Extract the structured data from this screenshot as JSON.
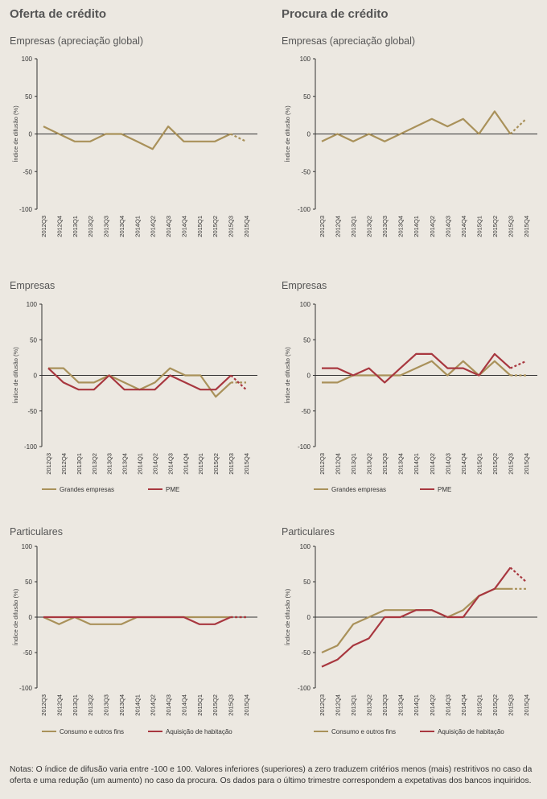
{
  "headers": {
    "left": "Oferta de crédito",
    "right": "Procura de crédito"
  },
  "notes": "Notas: O índice de difusão varia entre -100 e 100. Valores inferiores (superiores) a zero traduzem critérios menos (mais) restritivos no caso da oferta e uma redução (um aumento) no caso da procura. Os dados para o último trimestre correspondem a expetativas dos bancos inquiridos.",
  "colors": {
    "gold": "#a9915a",
    "red": "#a8373f",
    "axis": "#333333"
  },
  "chart_data": [
    {
      "type": "line",
      "panel": "oferta-empresas-global",
      "subtitle": "Empresas (apreciação global)",
      "ylabel": "Índice de difusão (%)",
      "ylim": [
        -100,
        100
      ],
      "yticks": [
        100,
        50,
        0,
        -50,
        -100
      ],
      "categories": [
        "2012Q3",
        "2012Q4",
        "2013Q1",
        "2013Q2",
        "2013Q3",
        "2013Q4",
        "2014Q1",
        "2014Q2",
        "2014Q3",
        "2014Q4",
        "2015Q1",
        "2015Q2",
        "2015Q3",
        "2015Q4"
      ],
      "forecast_last": true,
      "series": [
        {
          "name": "Empresas",
          "color": "gold",
          "values": [
            10,
            0,
            -10,
            -10,
            0,
            0,
            -10,
            -20,
            10,
            -10,
            -10,
            -10,
            0,
            -10
          ]
        }
      ]
    },
    {
      "type": "line",
      "panel": "procura-empresas-global",
      "subtitle": "Empresas (apreciação global)",
      "ylabel": "Índice de difusão (%)",
      "ylim": [
        -100,
        100
      ],
      "yticks": [
        100,
        50,
        0,
        -50,
        -100
      ],
      "categories": [
        "2012Q3",
        "2012Q4",
        "2013Q1",
        "2013Q2",
        "2013Q3",
        "2013Q4",
        "2014Q1",
        "2014Q2",
        "2014Q3",
        "2014Q4",
        "2015Q1",
        "2015Q2",
        "2015Q3",
        "2015Q4"
      ],
      "forecast_last": true,
      "series": [
        {
          "name": "Empresas",
          "color": "gold",
          "values": [
            -10,
            0,
            -10,
            0,
            -10,
            0,
            10,
            20,
            10,
            20,
            0,
            30,
            0,
            20
          ]
        }
      ]
    },
    {
      "type": "line",
      "panel": "oferta-empresas",
      "subtitle": "Empresas",
      "ylabel": "Índice de difusão (%)",
      "ylim": [
        -100,
        100
      ],
      "yticks": [
        100,
        50,
        0,
        -50,
        -100
      ],
      "categories": [
        "2012Q3",
        "2012Q4",
        "2013Q1",
        "2013Q2",
        "2013Q3",
        "2013Q4",
        "2014Q1",
        "2014Q2",
        "2014Q3",
        "2014Q4",
        "2015Q1",
        "2015Q2",
        "2015Q3",
        "2015Q4"
      ],
      "forecast_last": true,
      "series": [
        {
          "name": "Grandes empresas",
          "color": "gold",
          "values": [
            10,
            10,
            -10,
            -10,
            0,
            -10,
            -20,
            -10,
            10,
            0,
            0,
            -30,
            -10,
            -10
          ]
        },
        {
          "name": "PME",
          "color": "red",
          "values": [
            10,
            -10,
            -20,
            -20,
            0,
            -20,
            -20,
            -20,
            0,
            -10,
            -20,
            -20,
            0,
            -20
          ]
        }
      ]
    },
    {
      "type": "line",
      "panel": "procura-empresas",
      "subtitle": "Empresas",
      "ylabel": "Índice de difusão (%)",
      "ylim": [
        -100,
        100
      ],
      "yticks": [
        100,
        50,
        0,
        -50,
        -100
      ],
      "categories": [
        "2012Q3",
        "2012Q4",
        "2013Q1",
        "2013Q2",
        "2013Q3",
        "2013Q4",
        "2014Q1",
        "2014Q2",
        "2014Q3",
        "2014Q4",
        "2015Q1",
        "2015Q2",
        "2015Q3",
        "2015Q4"
      ],
      "forecast_last": true,
      "series": [
        {
          "name": "Grandes empresas",
          "color": "gold",
          "values": [
            -10,
            -10,
            0,
            0,
            0,
            0,
            10,
            20,
            0,
            20,
            0,
            20,
            0,
            0
          ]
        },
        {
          "name": "PME",
          "color": "red",
          "values": [
            10,
            10,
            0,
            10,
            -10,
            10,
            30,
            30,
            10,
            10,
            0,
            30,
            10,
            20
          ]
        }
      ]
    },
    {
      "type": "line",
      "panel": "oferta-particulares",
      "subtitle": "Particulares",
      "ylabel": "Índice de difusão (%)",
      "ylim": [
        -100,
        100
      ],
      "yticks": [
        100,
        50,
        0,
        -50,
        -100
      ],
      "categories": [
        "2012Q3",
        "2012Q4",
        "2013Q1",
        "2013Q2",
        "2013Q3",
        "2013Q4",
        "2014Q1",
        "2014Q2",
        "2014Q3",
        "2014Q4",
        "2015Q1",
        "2015Q2",
        "2015Q3",
        "2015Q4"
      ],
      "forecast_last": true,
      "series": [
        {
          "name": "Consumo e outros fins",
          "color": "gold",
          "values": [
            0,
            -10,
            0,
            -10,
            -10,
            -10,
            0,
            0,
            0,
            0,
            0,
            0,
            0,
            0
          ]
        },
        {
          "name": "Aquisição de habitação",
          "color": "red",
          "values": [
            0,
            0,
            0,
            0,
            0,
            0,
            0,
            0,
            0,
            0,
            -10,
            -10,
            0,
            0
          ]
        }
      ]
    },
    {
      "type": "line",
      "panel": "procura-particulares",
      "subtitle": "Particulares",
      "ylabel": "Índice de difusão (%)",
      "ylim": [
        -100,
        100
      ],
      "yticks": [
        100,
        50,
        0,
        -50,
        -100
      ],
      "categories": [
        "2012Q3",
        "2012Q4",
        "2013Q1",
        "2013Q2",
        "2013Q3",
        "2013Q4",
        "2014Q1",
        "2014Q2",
        "2014Q3",
        "2014Q4",
        "2015Q1",
        "2015Q2",
        "2015Q3",
        "2015Q4"
      ],
      "forecast_last": true,
      "series": [
        {
          "name": "Consumo e outros fins",
          "color": "gold",
          "values": [
            -50,
            -40,
            -10,
            0,
            10,
            10,
            10,
            10,
            0,
            10,
            30,
            40,
            40,
            40
          ]
        },
        {
          "name": "Aquisição de habitação",
          "color": "red",
          "values": [
            -70,
            -60,
            -40,
            -30,
            0,
            0,
            10,
            10,
            0,
            0,
            30,
            40,
            70,
            50
          ]
        }
      ]
    }
  ]
}
